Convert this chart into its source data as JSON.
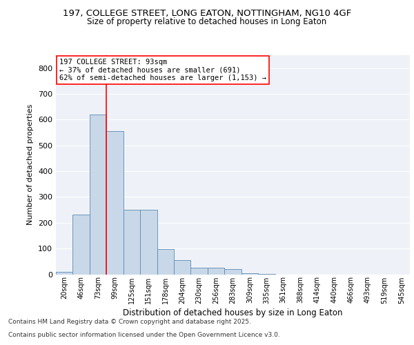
{
  "title1": "197, COLLEGE STREET, LONG EATON, NOTTINGHAM, NG10 4GF",
  "title2": "Size of property relative to detached houses in Long Eaton",
  "xlabel": "Distribution of detached houses by size in Long Eaton",
  "ylabel": "Number of detached properties",
  "categories": [
    "20sqm",
    "46sqm",
    "73sqm",
    "99sqm",
    "125sqm",
    "151sqm",
    "178sqm",
    "204sqm",
    "230sqm",
    "256sqm",
    "283sqm",
    "309sqm",
    "335sqm",
    "361sqm",
    "388sqm",
    "414sqm",
    "440sqm",
    "466sqm",
    "493sqm",
    "519sqm",
    "545sqm"
  ],
  "values": [
    10,
    232,
    620,
    555,
    250,
    250,
    97,
    55,
    26,
    26,
    20,
    5,
    1,
    0,
    0,
    0,
    0,
    0,
    0,
    0,
    0
  ],
  "bar_color": "#c8d8e8",
  "bar_edge_color": "#5b8ab5",
  "grid_color": "#c8d8e8",
  "background_color": "#eef2f8",
  "vline_color": "red",
  "annotation_text": "197 COLLEGE STREET: 93sqm\n← 37% of detached houses are smaller (691)\n62% of semi-detached houses are larger (1,153) →",
  "annotation_box_color": "white",
  "annotation_box_edge": "red",
  "footnote1": "Contains HM Land Registry data © Crown copyright and database right 2025.",
  "footnote2": "Contains public sector information licensed under the Open Government Licence v3.0.",
  "ylim": [
    0,
    850
  ],
  "yticks": [
    0,
    100,
    200,
    300,
    400,
    500,
    600,
    700,
    800
  ]
}
